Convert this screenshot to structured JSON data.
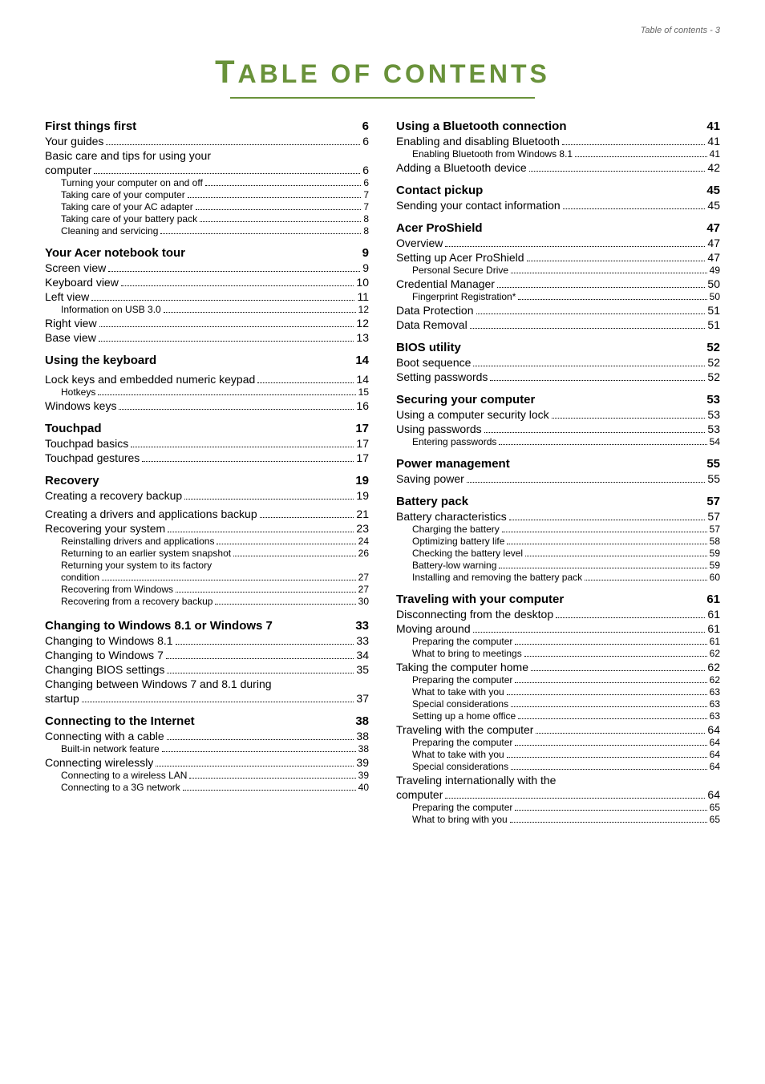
{
  "header_text": "Table of contents - 3",
  "title_big": "T",
  "title_rest": "ABLE OF CONTENTS",
  "colors": {
    "title": "#69923A",
    "text": "#000000",
    "header": "#666666",
    "bg": "#ffffff"
  },
  "left_column": [
    {
      "level": 0,
      "label": "First things first",
      "page": "6"
    },
    {
      "level": 1,
      "label": "Your guides",
      "page": "6"
    },
    {
      "level": 1,
      "label": "Basic care and tips for using your computer",
      "page": "6",
      "wrap": true
    },
    {
      "level": 2,
      "label": "Turning your computer on and off",
      "page": "6"
    },
    {
      "level": 2,
      "label": "Taking care of your computer",
      "page": "7"
    },
    {
      "level": 2,
      "label": "Taking care of your AC adapter",
      "page": "7"
    },
    {
      "level": 2,
      "label": "Taking care of your battery pack",
      "page": "8"
    },
    {
      "level": 2,
      "label": "Cleaning and servicing",
      "page": "8"
    },
    {
      "level": 0,
      "label": "Your Acer notebook tour",
      "page": "9"
    },
    {
      "level": 1,
      "label": "Screen view",
      "page": "9"
    },
    {
      "level": 1,
      "label": "Keyboard view",
      "page": "10"
    },
    {
      "level": 1,
      "label": "Left view",
      "page": "11"
    },
    {
      "level": 2,
      "label": "Information on USB 3.0",
      "page": "12"
    },
    {
      "level": 1,
      "label": "Right view",
      "page": "12"
    },
    {
      "level": 1,
      "label": "Base view",
      "page": "13"
    },
    {
      "level": 0,
      "label": "Using the keyboard",
      "page": "14"
    },
    {
      "level": 1,
      "label": "Lock keys and embedded numeric keypad",
      "page": "14",
      "wrap": true
    },
    {
      "level": 2,
      "label": "Hotkeys",
      "page": "15"
    },
    {
      "level": 1,
      "label": "Windows keys",
      "page": "16"
    },
    {
      "level": 0,
      "label": "Touchpad",
      "page": "17"
    },
    {
      "level": 1,
      "label": "Touchpad basics",
      "page": "17"
    },
    {
      "level": 1,
      "label": "Touchpad gestures",
      "page": "17"
    },
    {
      "level": 0,
      "label": "Recovery",
      "page": "19"
    },
    {
      "level": 1,
      "label": "Creating a recovery backup",
      "page": "19"
    },
    {
      "level": 1,
      "label": "Creating a drivers and applications backup",
      "page": "21",
      "wrap": true
    },
    {
      "level": 1,
      "label": "Recovering your system",
      "page": "23"
    },
    {
      "level": 2,
      "label": "Reinstalling drivers and applications",
      "page": "24"
    },
    {
      "level": 2,
      "label": "Returning to an earlier system snapshot",
      "page": "26"
    },
    {
      "level": 2,
      "label": "Returning your system to its factory condition",
      "page": "27",
      "wrap": true
    },
    {
      "level": 2,
      "label": "Recovering from Windows",
      "page": "27"
    },
    {
      "level": 2,
      "label": "Recovering from a recovery backup",
      "page": "30"
    },
    {
      "level": 0,
      "label": "Changing to Windows 8.1 or Windows 7",
      "page": "33",
      "wrap": true
    },
    {
      "level": 1,
      "label": "Changing to Windows 8.1",
      "page": "33"
    },
    {
      "level": 1,
      "label": "Changing to Windows 7",
      "page": "34"
    },
    {
      "level": 1,
      "label": "Changing BIOS settings",
      "page": "35"
    },
    {
      "level": 1,
      "label": "Changing between Windows 7 and 8.1 during startup",
      "page": "37",
      "wrap": true
    },
    {
      "level": 0,
      "label": "Connecting to the Internet",
      "page": "38"
    },
    {
      "level": 1,
      "label": "Connecting with a cable",
      "page": "38"
    },
    {
      "level": 2,
      "label": "Built-in network feature",
      "page": "38"
    },
    {
      "level": 1,
      "label": "Connecting wirelessly",
      "page": "39"
    },
    {
      "level": 2,
      "label": "Connecting to a wireless LAN",
      "page": "39"
    },
    {
      "level": 2,
      "label": "Connecting to a 3G network",
      "page": "40"
    }
  ],
  "right_column": [
    {
      "level": 0,
      "label": "Using a Bluetooth connection",
      "page": "41"
    },
    {
      "level": 1,
      "label": "Enabling and disabling Bluetooth",
      "page": "41"
    },
    {
      "level": 2,
      "label": "Enabling Bluetooth from Windows 8.1",
      "page": "41"
    },
    {
      "level": 1,
      "label": "Adding a Bluetooth device",
      "page": "42"
    },
    {
      "level": 0,
      "label": "Contact pickup",
      "page": "45"
    },
    {
      "level": 1,
      "label": "Sending your contact information",
      "page": "45"
    },
    {
      "level": 0,
      "label": "Acer ProShield",
      "page": "47"
    },
    {
      "level": 1,
      "label": "Overview",
      "page": "47"
    },
    {
      "level": 1,
      "label": "Setting up Acer ProShield",
      "page": "47"
    },
    {
      "level": 2,
      "label": "Personal Secure Drive",
      "page": "49"
    },
    {
      "level": 1,
      "label": "Credential Manager",
      "page": "50"
    },
    {
      "level": 2,
      "label": "Fingerprint Registration*",
      "page": "50"
    },
    {
      "level": 1,
      "label": "Data Protection",
      "page": "51"
    },
    {
      "level": 1,
      "label": "Data Removal",
      "page": "51"
    },
    {
      "level": 0,
      "label": "BIOS utility",
      "page": "52"
    },
    {
      "level": 1,
      "label": "Boot sequence",
      "page": "52"
    },
    {
      "level": 1,
      "label": "Setting passwords",
      "page": "52"
    },
    {
      "level": 0,
      "label": "Securing your computer",
      "page": "53"
    },
    {
      "level": 1,
      "label": "Using a computer security lock",
      "page": "53"
    },
    {
      "level": 1,
      "label": "Using passwords",
      "page": "53"
    },
    {
      "level": 2,
      "label": "Entering passwords",
      "page": "54"
    },
    {
      "level": 0,
      "label": "Power management",
      "page": "55"
    },
    {
      "level": 1,
      "label": "Saving power",
      "page": "55"
    },
    {
      "level": 0,
      "label": "Battery pack",
      "page": "57"
    },
    {
      "level": 1,
      "label": "Battery characteristics",
      "page": "57"
    },
    {
      "level": 2,
      "label": "Charging the battery",
      "page": "57"
    },
    {
      "level": 2,
      "label": "Optimizing battery life",
      "page": "58"
    },
    {
      "level": 2,
      "label": "Checking the battery level",
      "page": "59"
    },
    {
      "level": 2,
      "label": "Battery-low warning",
      "page": "59"
    },
    {
      "level": 2,
      "label": "Installing and removing the battery pack",
      "page": "60"
    },
    {
      "level": 0,
      "label": "Traveling with your computer",
      "page": "61"
    },
    {
      "level": 1,
      "label": "Disconnecting from the desktop",
      "page": "61"
    },
    {
      "level": 1,
      "label": "Moving around",
      "page": "61"
    },
    {
      "level": 2,
      "label": "Preparing the computer",
      "page": "61"
    },
    {
      "level": 2,
      "label": "What to bring to meetings",
      "page": "62"
    },
    {
      "level": 1,
      "label": "Taking the computer home",
      "page": "62"
    },
    {
      "level": 2,
      "label": "Preparing the computer",
      "page": "62"
    },
    {
      "level": 2,
      "label": "What to take with you",
      "page": "63"
    },
    {
      "level": 2,
      "label": "Special considerations",
      "page": "63"
    },
    {
      "level": 2,
      "label": "Setting up a home office",
      "page": "63"
    },
    {
      "level": 1,
      "label": "Traveling with the computer",
      "page": "64"
    },
    {
      "level": 2,
      "label": "Preparing the computer",
      "page": "64"
    },
    {
      "level": 2,
      "label": "What to take with you",
      "page": "64"
    },
    {
      "level": 2,
      "label": "Special considerations",
      "page": "64"
    },
    {
      "level": 1,
      "label": "Traveling internationally with the computer",
      "page": "64",
      "wrap": true
    },
    {
      "level": 2,
      "label": "Preparing the computer",
      "page": "65"
    },
    {
      "level": 2,
      "label": "What to bring with you",
      "page": "65"
    }
  ]
}
